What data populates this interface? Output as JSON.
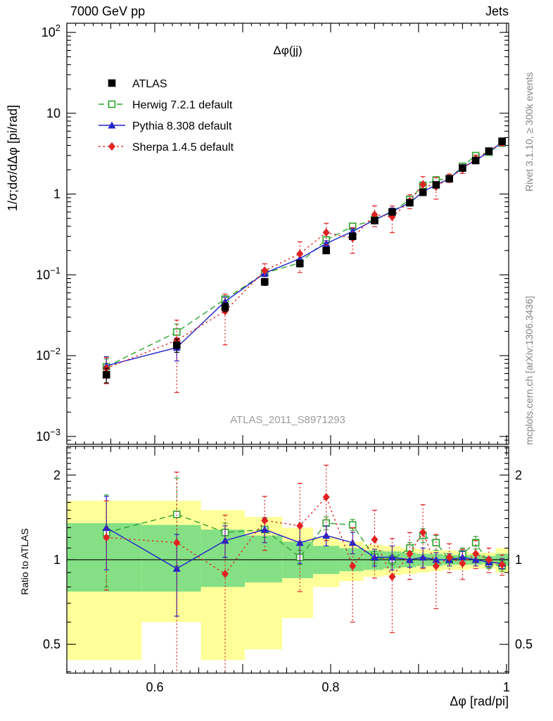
{
  "header": {
    "left": "7000 GeV pp",
    "right": "Jets"
  },
  "side_texts": {
    "top": "Rivet 3.1.10, ≥ 300k events",
    "bottom": "mcplots.cern.ch [arXiv:1306.3436]"
  },
  "watermark": "ATLAS_2011_S8971293",
  "chart_data": {
    "type": "line",
    "title": "Δφ(jj)",
    "xlabel": "Δφ [rad/pi]",
    "ylabel": "1/σ;dσ/dΔφ [pi/rad]",
    "ratio_ylabel": "Ratio to ATLAS",
    "grid": false,
    "legend_position": "top-left",
    "xlim": [
      0.5,
      1.0025
    ],
    "ylim": [
      0.0008,
      130
    ],
    "yscale": "log",
    "ratio_ylim": [
      0.395,
      2.53
    ],
    "x_ticks": [
      0.6,
      0.8,
      1
    ],
    "y_ticks": [
      0.001,
      0.01,
      0.1,
      1,
      10,
      100
    ],
    "ratio_ticks": [
      0.5,
      1,
      2
    ],
    "x": [
      0.545,
      0.625,
      0.68,
      0.725,
      0.765,
      0.795,
      0.825,
      0.85,
      0.87,
      0.89,
      0.905,
      0.92,
      0.935,
      0.95,
      0.965,
      0.98,
      0.995
    ],
    "series": [
      {
        "name": "ATLAS",
        "color": "#000000",
        "marker": "square",
        "fill": "filled",
        "line": "none",
        "values": [
          0.0058,
          0.0135,
          0.04,
          0.082,
          0.138,
          0.2,
          0.3,
          0.47,
          0.6,
          0.78,
          1.05,
          1.3,
          1.55,
          2.1,
          2.6,
          3.4,
          4.5
        ],
        "errors": [
          0.0012,
          0.0025,
          0.005,
          0.008,
          0.012,
          0.016,
          0.02,
          0.025,
          0.03,
          0.04,
          0.05,
          0.06,
          0.07,
          0.09,
          0.11,
          0.14,
          0.18
        ]
      },
      {
        "name": "Herwig 7.2.1 default",
        "color": "#2ea32e",
        "marker": "square",
        "fill": "open",
        "line": "dashed",
        "values": [
          0.0073,
          0.0196,
          0.05,
          0.105,
          0.141,
          0.27,
          0.399,
          0.479,
          0.6,
          0.858,
          1.281,
          1.495,
          1.55,
          2.205,
          2.99,
          3.3,
          4.275
        ],
        "errors": [
          0.0018,
          0.005,
          0.004,
          0.007,
          0.008,
          0.014,
          0.018,
          0.02,
          0.024,
          0.035,
          0.07,
          0.08,
          0.07,
          0.1,
          0.16,
          0.13,
          0.16
        ],
        "ratio": [
          1.25,
          1.45,
          1.25,
          1.28,
          1.02,
          1.35,
          1.33,
          1.02,
          1.0,
          1.1,
          1.22,
          1.15,
          1.0,
          1.05,
          1.15,
          0.97,
          0.95
        ],
        "ratio_errors": [
          0.45,
          0.5,
          0.1,
          0.08,
          0.06,
          0.07,
          0.06,
          0.05,
          0.04,
          0.05,
          0.07,
          0.07,
          0.05,
          0.05,
          0.06,
          0.04,
          0.04
        ]
      },
      {
        "name": "Pythia 8.308 default",
        "color": "#2222cc",
        "marker": "triangle",
        "fill": "filled",
        "line": "solid",
        "values": [
          0.0075,
          0.0126,
          0.0468,
          0.105,
          0.159,
          0.244,
          0.345,
          0.479,
          0.612,
          0.78,
          1.071,
          1.3,
          1.55,
          2.142,
          2.6,
          3.332,
          4.365
        ],
        "errors": [
          0.0022,
          0.004,
          0.006,
          0.01,
          0.025,
          0.02,
          0.03,
          0.033,
          0.06,
          0.047,
          0.084,
          0.078,
          0.08,
          0.107,
          0.13,
          0.133,
          0.15
        ],
        "ratio": [
          1.3,
          0.93,
          1.17,
          1.28,
          1.15,
          1.22,
          1.15,
          1.02,
          1.02,
          1.0,
          1.02,
          1.0,
          1.0,
          1.02,
          1.0,
          0.98,
          0.97
        ],
        "ratio_errors": [
          0.38,
          0.3,
          0.15,
          0.13,
          0.18,
          0.1,
          0.1,
          0.07,
          0.1,
          0.06,
          0.08,
          0.06,
          0.05,
          0.05,
          0.05,
          0.04,
          0.04
        ]
      },
      {
        "name": "Sherpa 1.4.5 default",
        "color": "#e02222",
        "marker": "diamond",
        "fill": "filled",
        "line": "dotted",
        "values": [
          0.007,
          0.0155,
          0.0356,
          0.113,
          0.182,
          0.334,
          0.285,
          0.555,
          0.522,
          0.819,
          1.313,
          1.235,
          1.581,
          2.037,
          2.73,
          3.4,
          4.32
        ],
        "errors": [
          0.0025,
          0.012,
          0.022,
          0.024,
          0.075,
          0.1,
          0.1,
          0.16,
          0.19,
          0.16,
          0.33,
          0.37,
          0.19,
          0.24,
          0.3,
          0.3,
          0.35
        ],
        "ratio": [
          1.2,
          1.15,
          0.89,
          1.38,
          1.32,
          1.67,
          0.95,
          1.18,
          0.87,
          1.05,
          1.25,
          0.95,
          1.02,
          0.97,
          1.05,
          1.0,
          0.96
        ],
        "ratio_errors": [
          0.42,
          0.9,
          0.55,
          0.3,
          0.55,
          0.5,
          0.35,
          0.32,
          0.32,
          0.2,
          0.32,
          0.28,
          0.12,
          0.12,
          0.12,
          0.1,
          0.08
        ]
      }
    ],
    "bands": {
      "yellow_color": "#ffff99",
      "green_color": "#85e085",
      "edges": [
        0.5,
        0.585,
        0.6525,
        0.7025,
        0.745,
        0.78,
        0.81,
        0.8375,
        0.86,
        0.88,
        0.8975,
        0.9125,
        0.9275,
        0.9425,
        0.9575,
        0.9725,
        0.9875,
        1.0025
      ],
      "yellow_low": [
        0.44,
        0.6,
        0.44,
        0.48,
        0.62,
        0.8,
        0.84,
        0.87,
        0.88,
        0.89,
        0.9,
        0.91,
        0.92,
        0.92,
        0.93,
        0.93,
        0.9
      ],
      "yellow_high": [
        1.62,
        1.62,
        1.5,
        1.42,
        1.3,
        1.2,
        1.16,
        1.13,
        1.12,
        1.1,
        1.09,
        1.08,
        1.08,
        1.07,
        1.06,
        1.06,
        1.1
      ],
      "green_low": [
        0.77,
        0.77,
        0.8,
        0.83,
        0.86,
        0.89,
        0.91,
        0.92,
        0.93,
        0.94,
        0.95,
        0.95,
        0.96,
        0.96,
        0.96,
        0.97,
        0.95
      ],
      "green_high": [
        1.35,
        1.33,
        1.28,
        1.22,
        1.16,
        1.12,
        1.1,
        1.08,
        1.07,
        1.06,
        1.05,
        1.05,
        1.04,
        1.04,
        1.04,
        1.03,
        1.05
      ]
    }
  }
}
